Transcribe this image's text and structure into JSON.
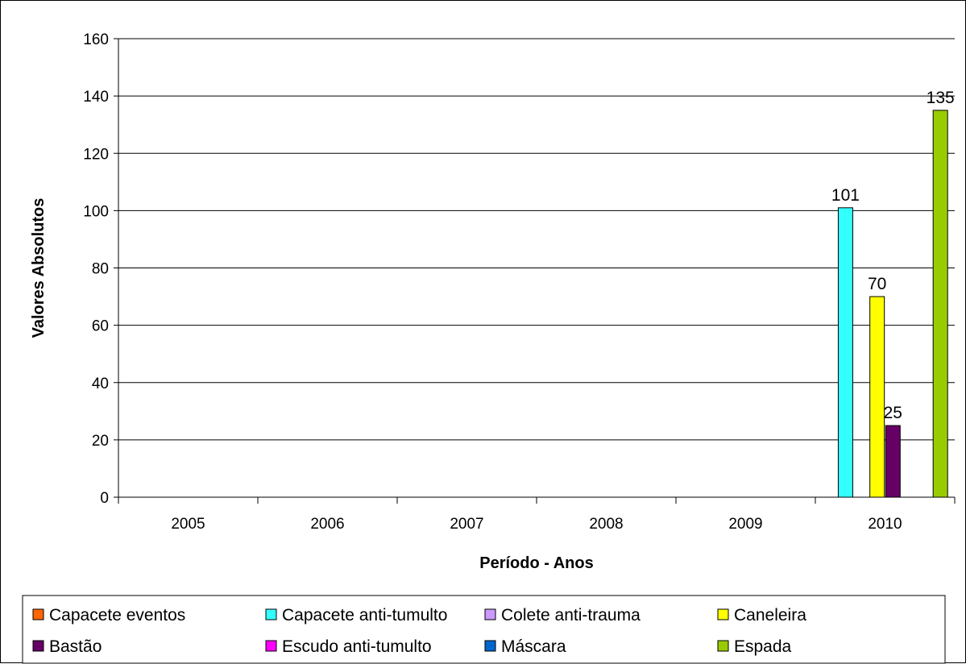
{
  "chart_data": {
    "type": "bar",
    "title": "",
    "xlabel": "Período - Anos",
    "ylabel": "Valores Absolutos",
    "categories": [
      "2005",
      "2006",
      "2007",
      "2008",
      "2009",
      "2010"
    ],
    "ylim": [
      0,
      160
    ],
    "yticks": [
      0,
      20,
      40,
      60,
      80,
      100,
      120,
      140,
      160
    ],
    "grid": true,
    "legend_position": "bottom",
    "series": [
      {
        "name": "Capacete eventos",
        "color": "#FF6600",
        "values": [
          0,
          0,
          0,
          0,
          0,
          0
        ]
      },
      {
        "name": "Capacete anti-tumulto",
        "color": "#33FFFF",
        "values": [
          0,
          0,
          0,
          0,
          0,
          101
        ]
      },
      {
        "name": "Colete anti-trauma",
        "color": "#CC99FF",
        "values": [
          0,
          0,
          0,
          0,
          0,
          0
        ]
      },
      {
        "name": "Caneleira",
        "color": "#FFFF00",
        "values": [
          0,
          0,
          0,
          0,
          0,
          70
        ]
      },
      {
        "name": "Bastão",
        "color": "#660066",
        "values": [
          0,
          0,
          0,
          0,
          0,
          25
        ]
      },
      {
        "name": "Escudo anti-tumulto",
        "color": "#FF00FF",
        "values": [
          0,
          0,
          0,
          0,
          0,
          0
        ]
      },
      {
        "name": "Máscara",
        "color": "#0066CC",
        "values": [
          0,
          0,
          0,
          0,
          0,
          0
        ]
      },
      {
        "name": "Espada",
        "color": "#99CC00",
        "values": [
          0,
          0,
          0,
          0,
          0,
          135
        ]
      }
    ],
    "data_labels": [
      {
        "series": "Capacete anti-tumulto",
        "category": "2010",
        "text": "101"
      },
      {
        "series": "Caneleira",
        "category": "2010",
        "text": "70"
      },
      {
        "series": "Bastão",
        "category": "2010",
        "text": "25"
      },
      {
        "series": "Espada",
        "category": "2010",
        "text": "135"
      }
    ]
  }
}
